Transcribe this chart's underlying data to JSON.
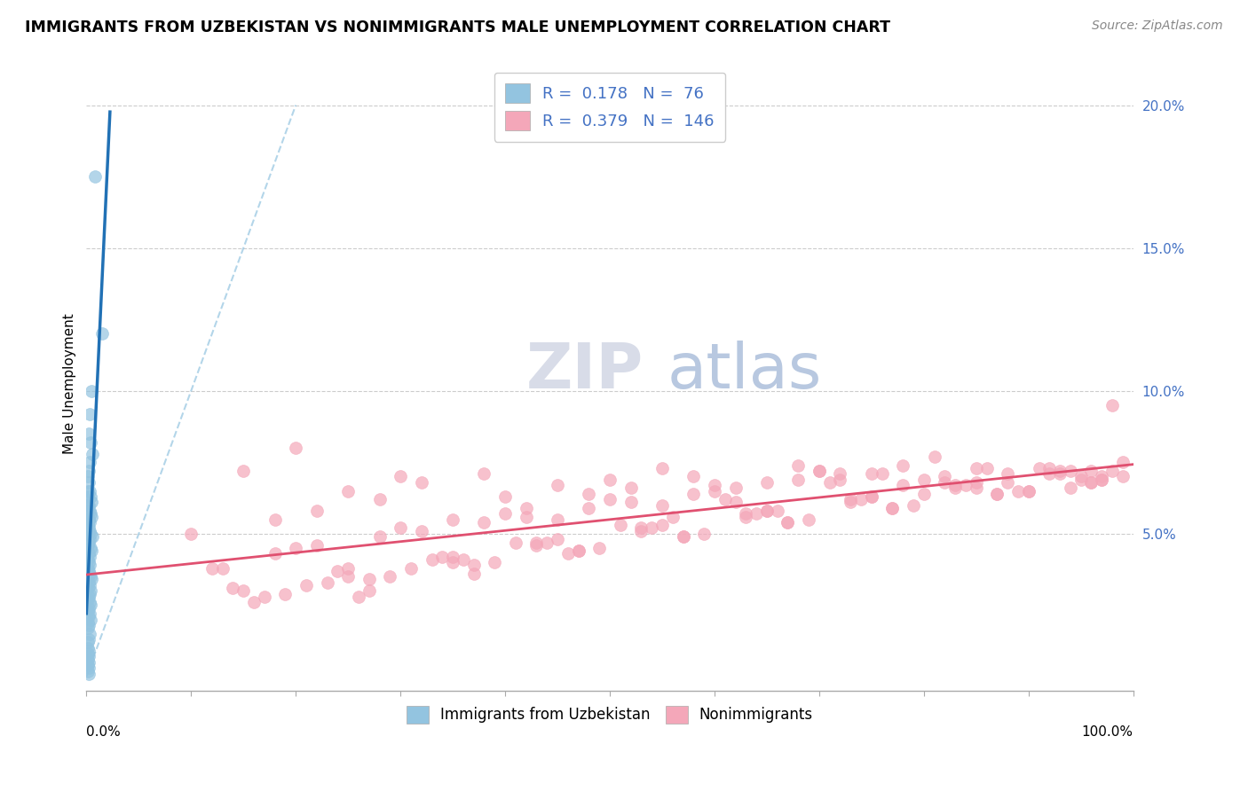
{
  "title": "IMMIGRANTS FROM UZBEKISTAN VS NONIMMIGRANTS MALE UNEMPLOYMENT CORRELATION CHART",
  "source": "Source: ZipAtlas.com",
  "ylabel": "Male Unemployment",
  "y_ticks_right": [
    0.0,
    0.05,
    0.1,
    0.15,
    0.2
  ],
  "y_tick_labels_right": [
    "",
    "5.0%",
    "10.0%",
    "15.0%",
    "20.0%"
  ],
  "xlim": [
    0.0,
    1.0
  ],
  "ylim": [
    -0.005,
    0.21
  ],
  "blue_color": "#93c4e0",
  "pink_color": "#f4a7b9",
  "blue_trend_color": "#2171b5",
  "pink_trend_color": "#e05070",
  "blue_diag_color": "#93c4e0",
  "watermark_zip": "ZIP",
  "watermark_atlas": "atlas",
  "watermark_zip_color": "#d8dce8",
  "watermark_atlas_color": "#b8c8e0",
  "blue_scatter_x": [
    0.008,
    0.015,
    0.005,
    0.003,
    0.002,
    0.004,
    0.006,
    0.003,
    0.002,
    0.001,
    0.002,
    0.003,
    0.004,
    0.005,
    0.002,
    0.003,
    0.004,
    0.005,
    0.002,
    0.003,
    0.001,
    0.002,
    0.003,
    0.004,
    0.006,
    0.003,
    0.002,
    0.001,
    0.004,
    0.005,
    0.002,
    0.003,
    0.001,
    0.002,
    0.003,
    0.001,
    0.002,
    0.003,
    0.004,
    0.005,
    0.002,
    0.003,
    0.001,
    0.004,
    0.003,
    0.002,
    0.001,
    0.003,
    0.004,
    0.002,
    0.001,
    0.003,
    0.002,
    0.004,
    0.001,
    0.002,
    0.001,
    0.003,
    0.002,
    0.001,
    0.001,
    0.002,
    0.001,
    0.002,
    0.001,
    0.002,
    0.001,
    0.002,
    0.001,
    0.002,
    0.001,
    0.001,
    0.001,
    0.001,
    0.002,
    0.001
  ],
  "blue_scatter_y": [
    0.175,
    0.12,
    0.1,
    0.092,
    0.085,
    0.082,
    0.078,
    0.075,
    0.072,
    0.07,
    0.068,
    0.065,
    0.063,
    0.061,
    0.06,
    0.058,
    0.057,
    0.056,
    0.055,
    0.054,
    0.053,
    0.052,
    0.051,
    0.05,
    0.049,
    0.048,
    0.047,
    0.046,
    0.045,
    0.044,
    0.043,
    0.042,
    0.041,
    0.04,
    0.039,
    0.038,
    0.037,
    0.036,
    0.035,
    0.034,
    0.033,
    0.032,
    0.031,
    0.03,
    0.029,
    0.028,
    0.027,
    0.026,
    0.025,
    0.024,
    0.023,
    0.022,
    0.021,
    0.02,
    0.019,
    0.018,
    0.017,
    0.015,
    0.013,
    0.012,
    0.01,
    0.009,
    0.008,
    0.007,
    0.006,
    0.005,
    0.004,
    0.003,
    0.002,
    0.001,
    0.065,
    0.063,
    0.06,
    0.058,
    0.055,
    0.05
  ],
  "pink_scatter_x": [
    0.1,
    0.12,
    0.15,
    0.18,
    0.2,
    0.22,
    0.25,
    0.28,
    0.3,
    0.32,
    0.35,
    0.38,
    0.4,
    0.42,
    0.45,
    0.48,
    0.5,
    0.52,
    0.55,
    0.58,
    0.6,
    0.62,
    0.65,
    0.68,
    0.7,
    0.72,
    0.75,
    0.78,
    0.8,
    0.82,
    0.85,
    0.88,
    0.9,
    0.92,
    0.95,
    0.98,
    0.99,
    0.97,
    0.96,
    0.94,
    0.15,
    0.25,
    0.35,
    0.45,
    0.55,
    0.65,
    0.75,
    0.85,
    0.95,
    0.2,
    0.3,
    0.4,
    0.5,
    0.6,
    0.7,
    0.8,
    0.9,
    0.25,
    0.35,
    0.45,
    0.55,
    0.65,
    0.75,
    0.85,
    0.18,
    0.28,
    0.38,
    0.48,
    0.58,
    0.68,
    0.78,
    0.88,
    0.22,
    0.32,
    0.42,
    0.52,
    0.62,
    0.72,
    0.82,
    0.92,
    0.27,
    0.37,
    0.47,
    0.57,
    0.67,
    0.77,
    0.87,
    0.97,
    0.33,
    0.43,
    0.53,
    0.63,
    0.73,
    0.83,
    0.93,
    0.13,
    0.23,
    0.43,
    0.53,
    0.63,
    0.73,
    0.83,
    0.93,
    0.17,
    0.27,
    0.37,
    0.47,
    0.57,
    0.67,
    0.77,
    0.87,
    0.97,
    0.14,
    0.24,
    0.34,
    0.44,
    0.54,
    0.64,
    0.74,
    0.84,
    0.94,
    0.19,
    0.29,
    0.39,
    0.49,
    0.59,
    0.69,
    0.79,
    0.89,
    0.99,
    0.16,
    0.36,
    0.56,
    0.76,
    0.96,
    0.21,
    0.41,
    0.61,
    0.81,
    0.91,
    0.26,
    0.46,
    0.66,
    0.86,
    0.31,
    0.51,
    0.71,
    0.98,
    0.96
  ],
  "pink_scatter_y": [
    0.05,
    0.038,
    0.072,
    0.055,
    0.08,
    0.058,
    0.065,
    0.062,
    0.07,
    0.068,
    0.055,
    0.071,
    0.063,
    0.059,
    0.067,
    0.064,
    0.069,
    0.066,
    0.073,
    0.07,
    0.065,
    0.061,
    0.068,
    0.074,
    0.072,
    0.069,
    0.071,
    0.067,
    0.064,
    0.07,
    0.073,
    0.068,
    0.065,
    0.071,
    0.069,
    0.072,
    0.075,
    0.07,
    0.068,
    0.066,
    0.03,
    0.038,
    0.04,
    0.055,
    0.06,
    0.058,
    0.063,
    0.066,
    0.07,
    0.045,
    0.052,
    0.057,
    0.062,
    0.067,
    0.072,
    0.069,
    0.065,
    0.035,
    0.042,
    0.048,
    0.053,
    0.058,
    0.063,
    0.068,
    0.043,
    0.049,
    0.054,
    0.059,
    0.064,
    0.069,
    0.074,
    0.071,
    0.046,
    0.051,
    0.056,
    0.061,
    0.066,
    0.071,
    0.068,
    0.073,
    0.03,
    0.036,
    0.044,
    0.049,
    0.054,
    0.059,
    0.064,
    0.069,
    0.041,
    0.047,
    0.052,
    0.057,
    0.062,
    0.067,
    0.072,
    0.038,
    0.033,
    0.046,
    0.051,
    0.056,
    0.061,
    0.066,
    0.071,
    0.028,
    0.034,
    0.039,
    0.044,
    0.049,
    0.054,
    0.059,
    0.064,
    0.069,
    0.031,
    0.037,
    0.042,
    0.047,
    0.052,
    0.057,
    0.062,
    0.067,
    0.072,
    0.029,
    0.035,
    0.04,
    0.045,
    0.05,
    0.055,
    0.06,
    0.065,
    0.07,
    0.026,
    0.041,
    0.056,
    0.071,
    0.068,
    0.032,
    0.047,
    0.062,
    0.077,
    0.073,
    0.028,
    0.043,
    0.058,
    0.073,
    0.038,
    0.053,
    0.068,
    0.095,
    0.072
  ]
}
